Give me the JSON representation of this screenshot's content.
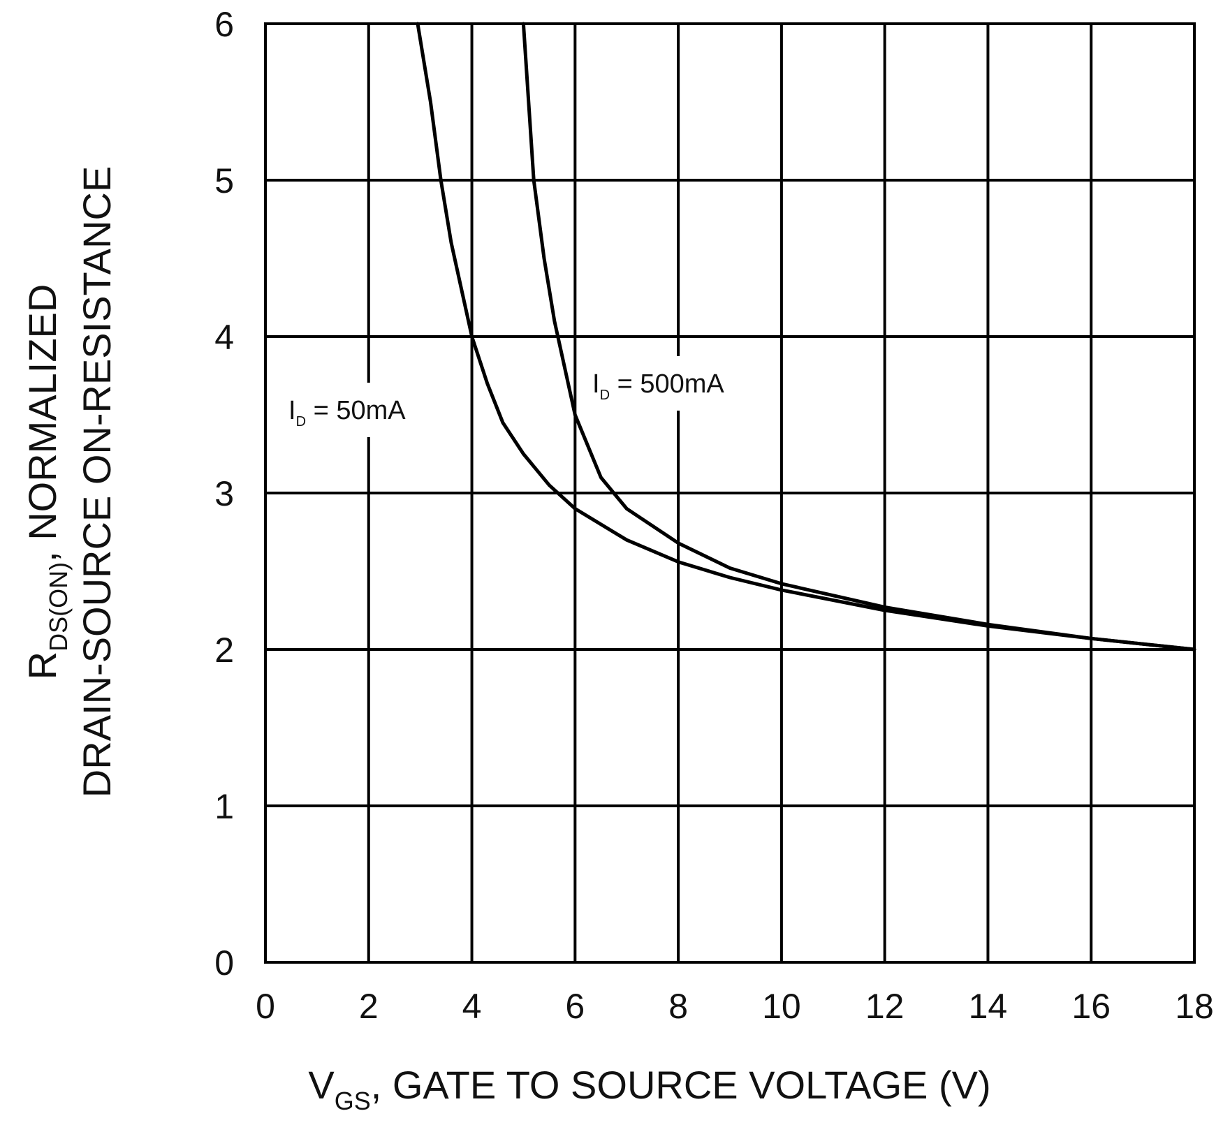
{
  "chart_data": {
    "type": "line",
    "title": "",
    "xlabel": {
      "main": "V",
      "sub": "GS",
      "rest": ", GATE TO SOURCE VOLTAGE (V)"
    },
    "ylabel": {
      "line1_main": "R",
      "line1_sub": "DS(ON)",
      "line1_rest": ", NORMALIZED",
      "line2": "DRAIN-SOURCE ON-RESISTANCE"
    },
    "xlim": [
      0,
      18
    ],
    "ylim": [
      0,
      6
    ],
    "xticks": [
      "0",
      "2",
      "4",
      "6",
      "8",
      "10",
      "12",
      "14",
      "16",
      "18"
    ],
    "yticks": [
      "0",
      "1",
      "2",
      "3",
      "4",
      "5",
      "6"
    ],
    "grid": true,
    "series": [
      {
        "name": "I_D = 50mA",
        "label": {
          "main": "I",
          "sub": "D",
          "rest": " = 50mA"
        },
        "x": [
          2.95,
          3.2,
          3.4,
          3.6,
          3.8,
          4.0,
          4.3,
          4.6,
          5.0,
          5.5,
          6.0,
          7.0,
          8.0,
          9.0,
          10.0,
          12.0,
          14.0,
          16.0,
          18.0
        ],
        "y": [
          6.0,
          5.5,
          5.0,
          4.6,
          4.3,
          4.0,
          3.7,
          3.45,
          3.25,
          3.05,
          2.9,
          2.7,
          2.56,
          2.46,
          2.38,
          2.25,
          2.15,
          2.07,
          2.0
        ]
      },
      {
        "name": "I_D = 500mA",
        "label": {
          "main": "I",
          "sub": "D",
          "rest": " = 500mA"
        },
        "x": [
          5.0,
          5.1,
          5.2,
          5.4,
          5.6,
          6.0,
          6.5,
          7.0,
          8.0,
          9.0,
          10.0,
          12.0,
          14.0,
          16.0,
          18.0
        ],
        "y": [
          6.0,
          5.5,
          5.0,
          4.5,
          4.1,
          3.5,
          3.1,
          2.9,
          2.68,
          2.52,
          2.42,
          2.27,
          2.16,
          2.07,
          2.0
        ]
      }
    ]
  }
}
